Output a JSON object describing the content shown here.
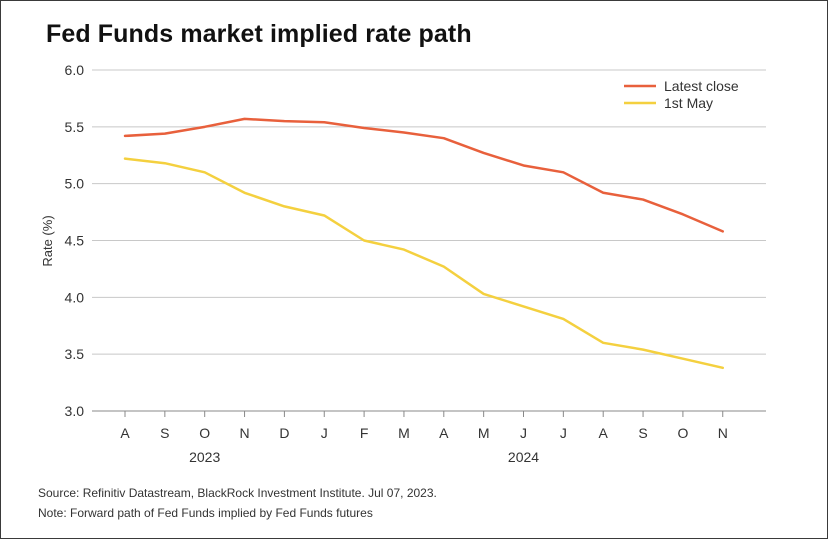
{
  "title": "Fed Funds market implied rate path",
  "chart_data": {
    "type": "line",
    "ylabel": "Rate (%)",
    "ylim": [
      3.0,
      6.0
    ],
    "yticks": [
      "3.0",
      "3.5",
      "4.0",
      "4.5",
      "5.0",
      "5.5",
      "6.0"
    ],
    "categories": [
      "A",
      "S",
      "O",
      "N",
      "D",
      "J",
      "F",
      "M",
      "A",
      "M",
      "J",
      "J",
      "A",
      "S",
      "O",
      "N"
    ],
    "year_labels": [
      {
        "label": "2023",
        "at_index": 2
      },
      {
        "label": "2024",
        "at_index": 10
      }
    ],
    "grid": true,
    "legend_position": "top-right",
    "series": [
      {
        "name": "Latest close",
        "color": "#e8603c",
        "values": [
          5.42,
          5.44,
          5.5,
          5.57,
          5.55,
          5.54,
          5.49,
          5.45,
          5.4,
          5.27,
          5.16,
          5.1,
          4.92,
          4.86,
          4.73,
          4.58
        ]
      },
      {
        "name": "1st May",
        "color": "#f4d03f",
        "values": [
          5.22,
          5.18,
          5.1,
          4.92,
          4.8,
          4.72,
          4.5,
          4.42,
          4.27,
          4.03,
          3.92,
          3.81,
          3.6,
          3.54,
          3.46,
          3.38
        ]
      }
    ]
  },
  "source": "Source: Refinitiv Datastream, BlackRock Investment Institute. Jul 07, 2023.",
  "note": "Note: Forward path of Fed Funds implied by Fed Funds futures"
}
